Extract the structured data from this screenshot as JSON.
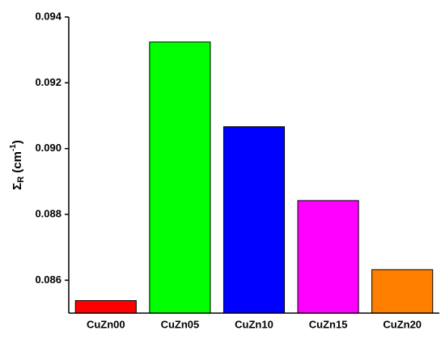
{
  "chart_data": {
    "type": "bar",
    "ylabel": {
      "symbol": "Σ",
      "sub": "R",
      "unit": " (cm",
      "sup": "-1",
      "close": ")"
    },
    "categories": [
      "CuZn00",
      "CuZn05",
      "CuZn10",
      "CuZn15",
      "CuZn20"
    ],
    "values": [
      0.08538,
      0.09324,
      0.090665,
      0.08842,
      0.08632
    ],
    "colors": [
      "#ff0000",
      "#00ff00",
      "#0000ff",
      "#ff00ff",
      "#ff8000"
    ],
    "ylim": [
      0.085,
      0.094
    ],
    "yticks": [
      0.086,
      0.088,
      {
        "value": 0.09,
        "label": "0.090"
      },
      0.092,
      0.094
    ]
  }
}
